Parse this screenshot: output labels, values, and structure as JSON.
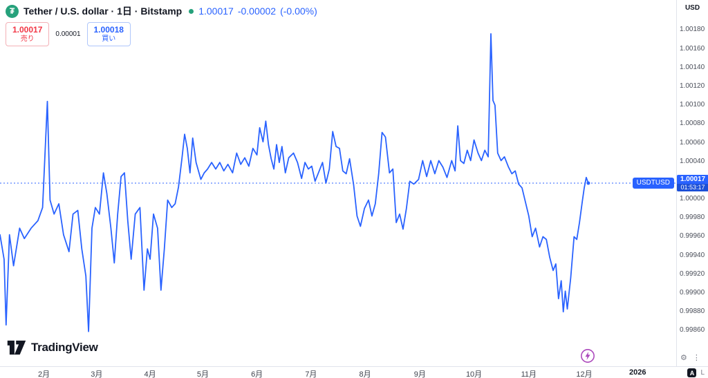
{
  "header": {
    "logo_glyph": "₮",
    "title": "Tether / U.S. dollar · 1日 · Bitstamp",
    "last_price": "1.00017",
    "change": "-0.00002",
    "change_pct": "(-0.00%)",
    "order_widget": {
      "sell_price": "1.00017",
      "sell_label": "売り",
      "spread": "0.00001",
      "buy_price": "1.00018",
      "buy_label": "買い"
    }
  },
  "price_scale": {
    "currency": "USD",
    "ticks": [
      "1.00180",
      "1.00160",
      "1.00140",
      "1.00120",
      "1.00100",
      "1.00080",
      "1.00060",
      "1.00040",
      "1.00000",
      "0.99980",
      "0.99960",
      "0.99940",
      "0.99920",
      "0.99900",
      "0.99880",
      "0.99860"
    ],
    "last_label": {
      "symbol": "USDTUSD",
      "price": "1.00017",
      "countdown": "01:53:17"
    },
    "toggles": {
      "auto": "A",
      "log": "L"
    }
  },
  "icons": {
    "gear": "⚙",
    "more": "⋮"
  },
  "footer": {
    "brand": "TradingView"
  },
  "chart_data": {
    "type": "line",
    "title": "Tether / U.S. dollar · 1日 · Bitstamp",
    "series_name": "USDTUSD close",
    "line_color": "#2962FF",
    "current_price": 1.00017,
    "ylim": [
      0.99822,
      1.00212
    ],
    "y_ticks": [
      1.0018,
      1.0016,
      1.0014,
      1.0012,
      1.001,
      1.0008,
      1.0006,
      1.0004,
      1.0,
      0.9998,
      0.9996,
      0.9994,
      0.9992,
      0.999,
      0.9988,
      0.9986
    ],
    "x_ticks": [
      {
        "label": "2月",
        "f": 0.065,
        "major": false
      },
      {
        "label": "3月",
        "f": 0.143,
        "major": false
      },
      {
        "label": "4月",
        "f": 0.222,
        "major": false
      },
      {
        "label": "5月",
        "f": 0.3,
        "major": false
      },
      {
        "label": "6月",
        "f": 0.38,
        "major": false
      },
      {
        "label": "7月",
        "f": 0.46,
        "major": false
      },
      {
        "label": "8月",
        "f": 0.54,
        "major": false
      },
      {
        "label": "9月",
        "f": 0.621,
        "major": false
      },
      {
        "label": "10月",
        "f": 0.701,
        "major": false
      },
      {
        "label": "11月",
        "f": 0.782,
        "major": false
      },
      {
        "label": "12月",
        "f": 0.864,
        "major": false
      },
      {
        "label": "2026",
        "f": 0.943,
        "major": true
      }
    ],
    "points": [
      [
        0.0,
        0.99962
      ],
      [
        0.006,
        0.99936
      ],
      [
        0.009,
        0.99866
      ],
      [
        0.014,
        0.99962
      ],
      [
        0.02,
        0.99929
      ],
      [
        0.029,
        0.99969
      ],
      [
        0.036,
        0.99958
      ],
      [
        0.046,
        0.99969
      ],
      [
        0.056,
        0.99977
      ],
      [
        0.063,
        0.99991
      ],
      [
        0.07,
        1.00104
      ],
      [
        0.074,
        0.99999
      ],
      [
        0.08,
        0.99984
      ],
      [
        0.087,
        0.99995
      ],
      [
        0.094,
        0.99962
      ],
      [
        0.102,
        0.99944
      ],
      [
        0.108,
        0.99984
      ],
      [
        0.115,
        0.99988
      ],
      [
        0.121,
        0.99947
      ],
      [
        0.127,
        0.99918
      ],
      [
        0.131,
        0.99859
      ],
      [
        0.136,
        0.99969
      ],
      [
        0.141,
        0.99991
      ],
      [
        0.147,
        0.99984
      ],
      [
        0.153,
        1.00028
      ],
      [
        0.158,
        1.00006
      ],
      [
        0.164,
        0.99969
      ],
      [
        0.169,
        0.99932
      ],
      [
        0.174,
        0.99984
      ],
      [
        0.179,
        1.00024
      ],
      [
        0.184,
        1.00028
      ],
      [
        0.189,
        0.99977
      ],
      [
        0.194,
        0.99936
      ],
      [
        0.2,
        0.99984
      ],
      [
        0.207,
        0.99991
      ],
      [
        0.213,
        0.99903
      ],
      [
        0.218,
        0.99947
      ],
      [
        0.222,
        0.99936
      ],
      [
        0.227,
        0.99984
      ],
      [
        0.233,
        0.99969
      ],
      [
        0.238,
        0.99903
      ],
      [
        0.243,
        0.99947
      ],
      [
        0.248,
        0.99999
      ],
      [
        0.254,
        0.99991
      ],
      [
        0.259,
        0.99995
      ],
      [
        0.264,
        1.00013
      ],
      [
        0.269,
        1.00043
      ],
      [
        0.273,
        1.00069
      ],
      [
        0.277,
        1.00054
      ],
      [
        0.281,
        1.00028
      ],
      [
        0.285,
        1.00065
      ],
      [
        0.29,
        1.00039
      ],
      [
        0.297,
        1.00021
      ],
      [
        0.302,
        1.00028
      ],
      [
        0.307,
        1.00032
      ],
      [
        0.313,
        1.00039
      ],
      [
        0.319,
        1.00032
      ],
      [
        0.325,
        1.00039
      ],
      [
        0.331,
        1.0003
      ],
      [
        0.337,
        1.00037
      ],
      [
        0.344,
        1.00028
      ],
      [
        0.35,
        1.00049
      ],
      [
        0.356,
        1.00037
      ],
      [
        0.362,
        1.00044
      ],
      [
        0.368,
        1.00035
      ],
      [
        0.374,
        1.00054
      ],
      [
        0.38,
        1.00047
      ],
      [
        0.384,
        1.00076
      ],
      [
        0.389,
        1.00061
      ],
      [
        0.393,
        1.00083
      ],
      [
        0.397,
        1.00058
      ],
      [
        0.401,
        1.00043
      ],
      [
        0.405,
        1.00032
      ],
      [
        0.409,
        1.00058
      ],
      [
        0.413,
        1.00039
      ],
      [
        0.417,
        1.00056
      ],
      [
        0.422,
        1.00028
      ],
      [
        0.427,
        1.00044
      ],
      [
        0.434,
        1.00049
      ],
      [
        0.44,
        1.00039
      ],
      [
        0.446,
        1.00022
      ],
      [
        0.451,
        1.00039
      ],
      [
        0.456,
        1.00032
      ],
      [
        0.461,
        1.00035
      ],
      [
        0.466,
        1.00019
      ],
      [
        0.471,
        1.00028
      ],
      [
        0.477,
        1.00039
      ],
      [
        0.482,
        1.00017
      ],
      [
        0.487,
        1.00032
      ],
      [
        0.492,
        1.00072
      ],
      [
        0.497,
        1.00056
      ],
      [
        0.502,
        1.00054
      ],
      [
        0.507,
        1.0003
      ],
      [
        0.512,
        1.00027
      ],
      [
        0.517,
        1.00043
      ],
      [
        0.523,
        1.00015
      ],
      [
        0.528,
        0.99982
      ],
      [
        0.533,
        0.99971
      ],
      [
        0.539,
        0.9999
      ],
      [
        0.545,
        0.99999
      ],
      [
        0.55,
        0.99982
      ],
      [
        0.555,
        0.99995
      ],
      [
        0.56,
        1.00027
      ],
      [
        0.565,
        1.00071
      ],
      [
        0.57,
        1.00066
      ],
      [
        0.576,
        1.00028
      ],
      [
        0.581,
        1.00032
      ],
      [
        0.586,
        0.99975
      ],
      [
        0.591,
        0.99984
      ],
      [
        0.596,
        0.99968
      ],
      [
        0.601,
        0.9999
      ],
      [
        0.606,
        1.00019
      ],
      [
        0.612,
        1.00016
      ],
      [
        0.619,
        1.00021
      ],
      [
        0.625,
        1.00041
      ],
      [
        0.631,
        1.00024
      ],
      [
        0.637,
        1.00041
      ],
      [
        0.643,
        1.00027
      ],
      [
        0.649,
        1.00041
      ],
      [
        0.655,
        1.00034
      ],
      [
        0.661,
        1.00023
      ],
      [
        0.668,
        1.00041
      ],
      [
        0.673,
        1.0003
      ],
      [
        0.677,
        1.00078
      ],
      [
        0.681,
        1.00041
      ],
      [
        0.686,
        1.00038
      ],
      [
        0.691,
        1.00052
      ],
      [
        0.696,
        1.00041
      ],
      [
        0.701,
        1.00063
      ],
      [
        0.707,
        1.00049
      ],
      [
        0.712,
        1.00041
      ],
      [
        0.717,
        1.00052
      ],
      [
        0.722,
        1.00045
      ],
      [
        0.726,
        1.00176
      ],
      [
        0.729,
        1.00105
      ],
      [
        0.732,
        1.001
      ],
      [
        0.736,
        1.00049
      ],
      [
        0.741,
        1.00041
      ],
      [
        0.746,
        1.00045
      ],
      [
        0.752,
        1.00034
      ],
      [
        0.757,
        1.00027
      ],
      [
        0.762,
        1.0003
      ],
      [
        0.767,
        1.00016
      ],
      [
        0.772,
        1.00012
      ],
      [
        0.777,
        0.99997
      ],
      [
        0.782,
        0.99982
      ],
      [
        0.787,
        0.9996
      ],
      [
        0.792,
        0.99969
      ],
      [
        0.798,
        0.99949
      ],
      [
        0.803,
        0.9996
      ],
      [
        0.808,
        0.99957
      ],
      [
        0.813,
        0.99938
      ],
      [
        0.818,
        0.99924
      ],
      [
        0.822,
        0.99931
      ],
      [
        0.826,
        0.99894
      ],
      [
        0.83,
        0.99913
      ],
      [
        0.833,
        0.9988
      ],
      [
        0.836,
        0.99902
      ],
      [
        0.839,
        0.99883
      ],
      [
        0.844,
        0.99916
      ],
      [
        0.849,
        0.9996
      ],
      [
        0.853,
        0.99957
      ],
      [
        0.857,
        0.99975
      ],
      [
        0.861,
        0.99997
      ],
      [
        0.864,
        1.00012
      ],
      [
        0.867,
        1.00023
      ],
      [
        0.87,
        1.00017
      ]
    ]
  }
}
